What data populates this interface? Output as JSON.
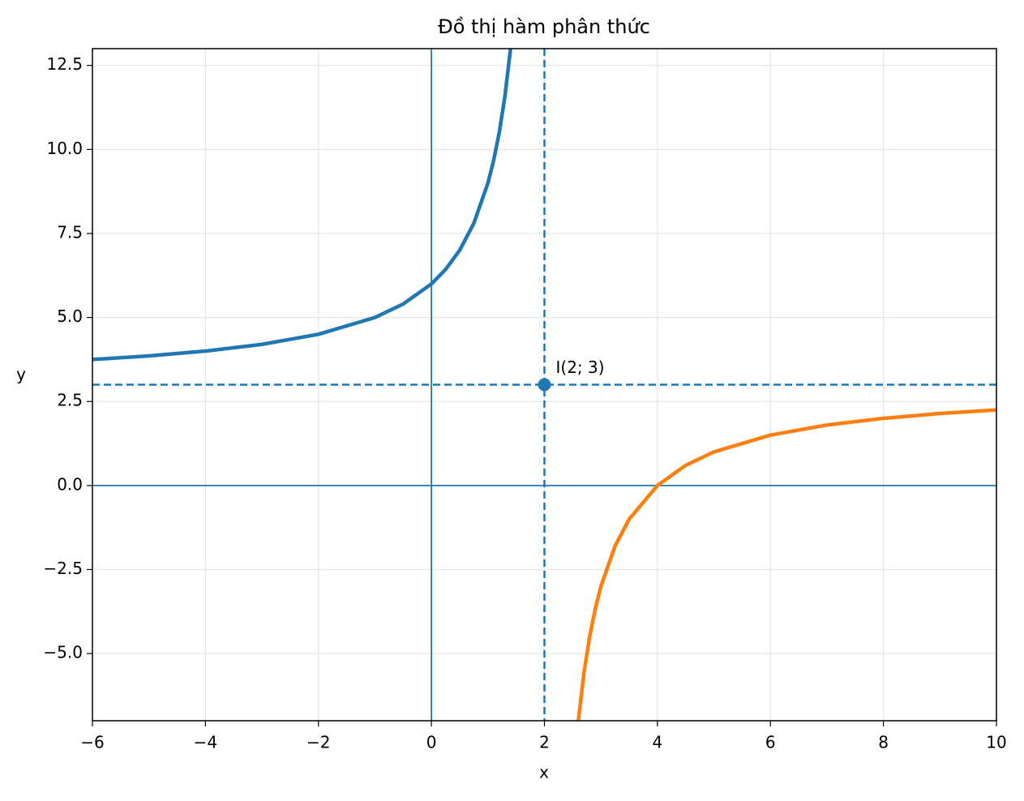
{
  "chart_data": {
    "type": "line",
    "title": "Đồ thị hàm phân thức",
    "xlabel": "x",
    "ylabel": "y",
    "xlim": [
      -6,
      10
    ],
    "ylim": [
      -7,
      13
    ],
    "xticks": [
      {
        "value": -6,
        "label": "−6"
      },
      {
        "value": -4,
        "label": "−4"
      },
      {
        "value": -2,
        "label": "−2"
      },
      0,
      2,
      4,
      6,
      8,
      10
    ],
    "yticks": [
      {
        "value": -5,
        "label": "−5.0"
      },
      {
        "value": -2.5,
        "label": "−2.5"
      },
      {
        "value": 0,
        "label": "0.0"
      },
      2.5,
      {
        "value": 5,
        "label": "5.0"
      },
      7.5,
      {
        "value": 10,
        "label": "10.0"
      },
      12.5
    ],
    "grid": true,
    "series": [
      {
        "color": "#1f77b4",
        "x": [
          -6,
          -5,
          -4,
          -3,
          -2,
          -1,
          -0.5,
          0,
          0.25,
          0.5,
          0.75,
          1,
          1.1,
          1.2,
          1.3,
          1.4
        ],
        "values": [
          3.75,
          3.857,
          4,
          4.2,
          4.5,
          5,
          5.4,
          6,
          6.429,
          7,
          7.8,
          9,
          9.667,
          10.5,
          11.571,
          13
        ]
      },
      {
        "color": "#ff7f0e",
        "x": [
          2.6,
          2.7,
          2.8,
          2.9,
          3,
          3.25,
          3.5,
          4,
          4.5,
          5,
          6,
          7,
          8,
          9,
          10
        ],
        "values": [
          -7,
          -5.571,
          -4.5,
          -3.667,
          -3,
          -1.8,
          -1,
          0,
          0.6,
          1,
          1.5,
          1.8,
          2,
          2.143,
          2.25
        ]
      }
    ],
    "reference_lines": [
      {
        "axis": "x",
        "value": 0,
        "style": "solid"
      },
      {
        "axis": "y",
        "value": 0,
        "style": "solid"
      },
      {
        "axis": "x",
        "value": 2,
        "style": "dashed"
      },
      {
        "axis": "y",
        "value": 3,
        "style": "dashed"
      }
    ],
    "reference_color": "#1f77b4",
    "point": {
      "x": 2,
      "y": 3,
      "label": "I(2; 3)"
    }
  }
}
